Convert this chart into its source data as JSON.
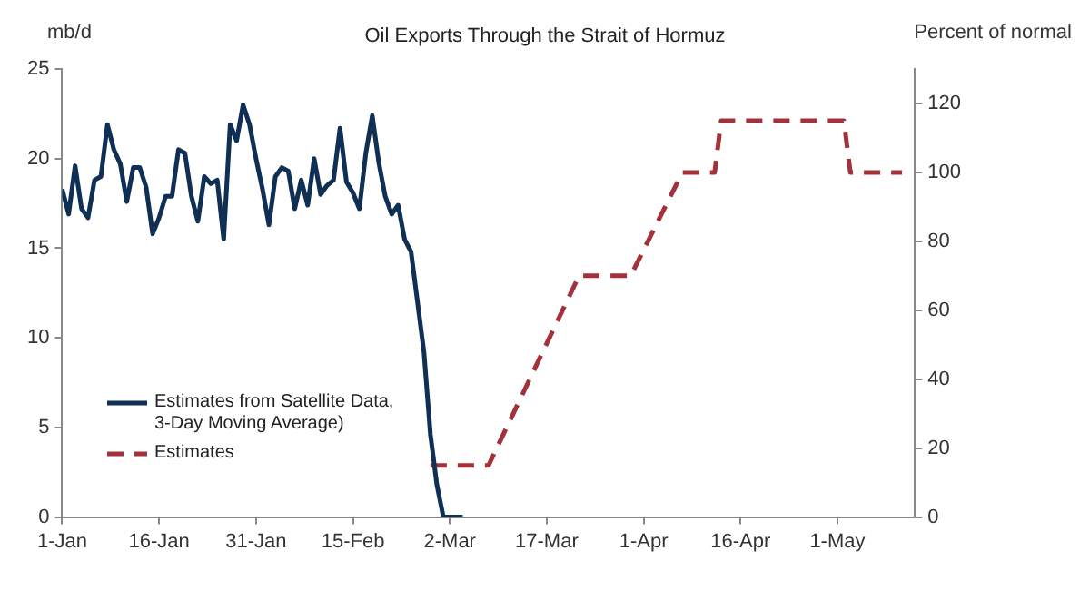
{
  "chart_data": {
    "type": "line",
    "title": "Oil Exports Through the Strait of Hormuz",
    "ylabel": "mb/d",
    "y2label": "Percent of normal",
    "xlim": [
      "--01-01",
      "--05-13"
    ],
    "xticks": [
      {
        "value": "--01-01",
        "label": "1-Jan"
      },
      {
        "value": "--01-16",
        "label": "16-Jan"
      },
      {
        "value": "--01-31",
        "label": "31-Jan"
      },
      {
        "value": "--02-15",
        "label": "15-Feb"
      },
      {
        "value": "--03-02",
        "label": "2-Mar"
      },
      {
        "value": "--03-17",
        "label": "17-Mar"
      },
      {
        "value": "--04-01",
        "label": "1-Apr"
      },
      {
        "value": "--04-16",
        "label": "16-Apr"
      },
      {
        "value": "--05-01",
        "label": "1-May"
      }
    ],
    "ylim": [
      0,
      25
    ],
    "yticks": [
      0,
      5,
      10,
      15,
      20,
      25
    ],
    "y2lim": [
      0,
      130
    ],
    "y2ticks": [
      0,
      20,
      40,
      60,
      80,
      100,
      120
    ],
    "legend": "bottom left",
    "marker": "none",
    "series": [
      {
        "name": "Estimates from Satellite Data, 3-Day Moving Average)",
        "color": "#0f2f55",
        "line_style": "solid",
        "x": [
          "--01-01",
          "--01-02",
          "--01-03",
          "--01-04",
          "--01-05",
          "--01-06",
          "--01-07",
          "--01-08",
          "--01-09",
          "--01-10",
          "--01-11",
          "--01-12",
          "--01-13",
          "--01-14",
          "--01-15",
          "--01-16",
          "--01-17",
          "--01-18",
          "--01-19",
          "--01-20",
          "--01-21",
          "--01-22",
          "--01-23",
          "--01-24",
          "--01-25",
          "--01-26",
          "--01-27",
          "--01-28",
          "--01-29",
          "--01-30",
          "--01-31",
          "--02-01",
          "--02-02",
          "--02-03",
          "--02-04",
          "--02-05",
          "--02-06",
          "--02-07",
          "--02-08",
          "--02-09",
          "--02-10",
          "--02-11",
          "--02-12",
          "--02-13",
          "--02-14",
          "--02-15",
          "--02-16",
          "--02-17",
          "--02-18",
          "--02-19",
          "--02-20",
          "--02-21",
          "--02-22",
          "--02-23",
          "--02-24",
          "--02-25",
          "--02-26",
          "--02-27",
          "--02-28",
          "--03-01",
          "--03-04"
        ],
        "values": [
          18.3,
          16.9,
          19.6,
          17.2,
          16.7,
          18.8,
          19.0,
          21.9,
          20.5,
          19.7,
          17.6,
          19.5,
          19.5,
          18.4,
          15.8,
          16.7,
          17.9,
          17.9,
          20.5,
          20.3,
          17.9,
          16.5,
          19.0,
          18.6,
          18.8,
          15.5,
          21.9,
          21.0,
          23.0,
          21.9,
          20.0,
          18.3,
          16.3,
          19.0,
          19.5,
          19.3,
          17.2,
          18.8,
          17.4,
          20.0,
          18.0,
          18.5,
          18.8,
          21.7,
          18.7,
          18.1,
          17.2,
          20.3,
          22.4,
          19.8,
          17.9,
          16.9,
          17.4,
          15.5,
          14.8,
          12.0,
          9.2,
          4.6,
          1.8,
          0,
          0
        ]
      },
      {
        "name": "Estimates",
        "color": "#a3313a",
        "line_style": "dashed",
        "axis": "y2",
        "x": [
          "--02-27",
          "--03-08",
          "--03-22",
          "--03-30",
          "--04-07",
          "--04-12",
          "--04-13",
          "--05-02",
          "--05-03",
          "--05-11"
        ],
        "values": [
          15,
          15,
          70,
          70,
          100,
          100,
          115,
          115,
          100,
          100
        ]
      }
    ]
  }
}
